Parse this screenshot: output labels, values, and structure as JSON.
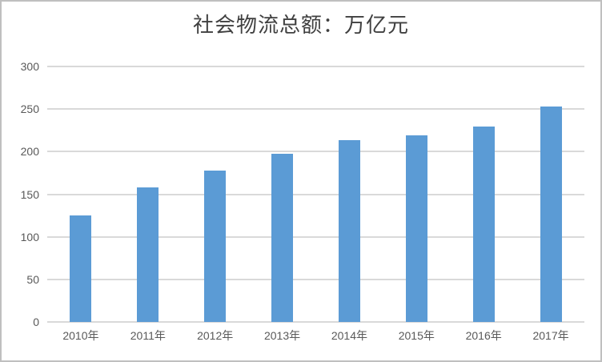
{
  "chart_data": {
    "type": "bar",
    "title": "社会物流总额：万亿元",
    "categories": [
      "2010年",
      "2011年",
      "2012年",
      "2013年",
      "2014年",
      "2015年",
      "2016年",
      "2017年"
    ],
    "values": [
      125.4,
      158.4,
      177.3,
      197.8,
      213.5,
      219.2,
      229.7,
      252.8
    ],
    "xlabel": "",
    "ylabel": "",
    "ylim": [
      0,
      300
    ],
    "yticks": [
      0,
      50,
      100,
      150,
      200,
      250,
      300
    ],
    "grid": true,
    "legend": false,
    "bar_color": "#5b9bd5",
    "gridline_color": "#d9d9d9",
    "tick_label_color": "#595959",
    "title_color": "#404040",
    "border_color": "#bfbfbf",
    "background_color": "#ffffff"
  }
}
